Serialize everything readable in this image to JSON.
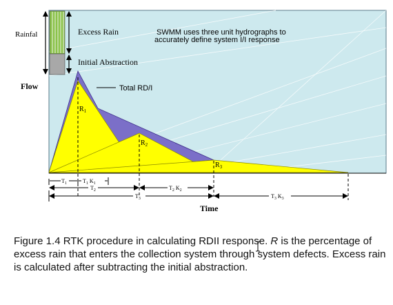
{
  "diagram": {
    "rainfall_label": "Rainfal",
    "excess_rain_label": "Excess Rain",
    "note_line1": "SWMM uses three unit hydrographs to",
    "note_line2": "accurately define system I/I response",
    "initial_abstraction_label": "Initial Abstraction",
    "flow_label": "Flow",
    "total_label": "Total RD/I",
    "time_label": "Time",
    "r1": "R",
    "r1_sub": "1",
    "r2": "R",
    "r2_sub": "2",
    "r3": "R",
    "r3_sub": "3",
    "t1": "T",
    "t1_sub": "1",
    "t1k1": "T",
    "t1k1_sub": "1",
    "t1k1_k": " K",
    "t1k1_k_sub": "1",
    "t2": "T",
    "t2_sub": "2",
    "t2k2": "T",
    "t2k2_sub": "2",
    "t2k2_k": " K",
    "t2k2_k_sub": "2",
    "t3": "T",
    "t3_sub": "3",
    "t3k3": "T",
    "t3k3_sub": "3",
    "t3k3_k": " K",
    "t3k3_k_sub": "3",
    "colors": {
      "background": "#cde9ee",
      "excess_rain": "#8bc34a",
      "abstraction": "#a8a8a8",
      "hydrograph": "#ffff00",
      "total": "#7b6fc8"
    }
  },
  "caption": {
    "prefix": "Figure 1.4  RTK procedure in calculating RDII response. ",
    "r_symbol": "R",
    "suffix": " is the percentage of excess rain that enters the collection system through system defects. Excess rain is calculated after subtracting the initial abstraction."
  }
}
